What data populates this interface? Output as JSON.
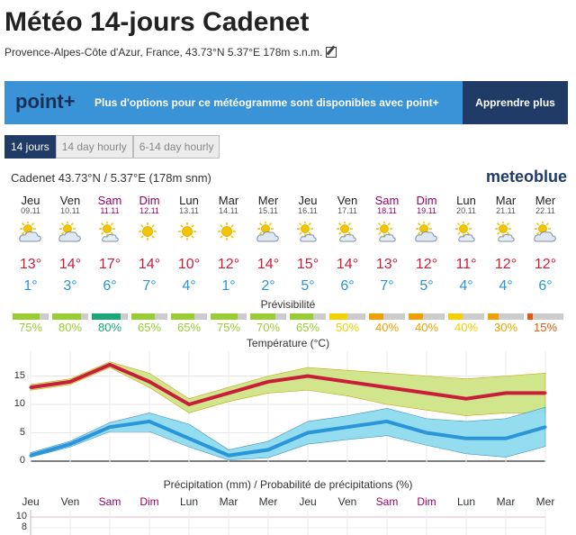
{
  "page": {
    "title": "Météo 14-jours Cadenet",
    "subtitle": "Provence-Alpes-Côte d'Azur, France, 43.73°N 5.37°E 178m s.n.m."
  },
  "banner": {
    "logo": "point+",
    "message": "Plus d'options pour ce météogramme sont disponibles avec point+",
    "cta": "Apprendre plus"
  },
  "tabs": [
    "14 jours",
    "14 day hourly",
    "6-14 day hourly"
  ],
  "location": "Cadenet  43.73°N / 5.37°E (178m snm)",
  "brand": "meteoblue",
  "predictability_label": "Prévisibilité",
  "days": [
    {
      "day": "Jeu",
      "date": "09.11",
      "weekend": false,
      "icon": "partly-cloudy-icon",
      "tmax": "13°",
      "tmin": "1°",
      "pred": "75%",
      "pred_value": 75,
      "pred_color": "#9acd32"
    },
    {
      "day": "Ven",
      "date": "10.11",
      "weekend": false,
      "icon": "partly-cloudy-icon",
      "tmax": "14°",
      "tmin": "3°",
      "pred": "80%",
      "pred_value": 80,
      "pred_color": "#9acd32"
    },
    {
      "day": "Sam",
      "date": "11.11",
      "weekend": true,
      "icon": "sun-cloud-icon",
      "tmax": "17°",
      "tmin": "6°",
      "pred": "80%",
      "pred_value": 80,
      "pred_color": "#1aa87a"
    },
    {
      "day": "Dim",
      "date": "12.11",
      "weekend": true,
      "icon": "sunny-icon",
      "tmax": "14°",
      "tmin": "7°",
      "pred": "65%",
      "pred_value": 65,
      "pred_color": "#9acd32"
    },
    {
      "day": "Lun",
      "date": "13.11",
      "weekend": false,
      "icon": "sunny-icon",
      "tmax": "10°",
      "tmin": "4°",
      "pred": "65%",
      "pred_value": 65,
      "pred_color": "#9acd32"
    },
    {
      "day": "Mar",
      "date": "14.11",
      "weekend": false,
      "icon": "sunny-icon",
      "tmax": "12°",
      "tmin": "1°",
      "pred": "75%",
      "pred_value": 75,
      "pred_color": "#9acd32"
    },
    {
      "day": "Mer",
      "date": "15.11",
      "weekend": false,
      "icon": "partly-cloudy-icon",
      "tmax": "14°",
      "tmin": "2°",
      "pred": "70%",
      "pred_value": 70,
      "pred_color": "#9acd32"
    },
    {
      "day": "Jeu",
      "date": "16.11",
      "weekend": false,
      "icon": "sun-cloud-icon",
      "tmax": "15°",
      "tmin": "5°",
      "pred": "65%",
      "pred_value": 65,
      "pred_color": "#9acd32"
    },
    {
      "day": "Ven",
      "date": "17.11",
      "weekend": false,
      "icon": "sun-cloud-icon",
      "tmax": "14°",
      "tmin": "6°",
      "pred": "50%",
      "pred_value": 50,
      "pred_color": "#f5d000"
    },
    {
      "day": "Sam",
      "date": "18.11",
      "weekend": true,
      "icon": "sun-cloud-icon",
      "tmax": "13°",
      "tmin": "7°",
      "pred": "40%",
      "pred_value": 40,
      "pred_color": "#f0a000"
    },
    {
      "day": "Dim",
      "date": "19.11",
      "weekend": true,
      "icon": "partly-cloudy-icon",
      "tmax": "12°",
      "tmin": "5°",
      "pred": "40%",
      "pred_value": 40,
      "pred_color": "#f0a000"
    },
    {
      "day": "Lun",
      "date": "20.11",
      "weekend": false,
      "icon": "sun-cloud-icon",
      "tmax": "11°",
      "tmin": "4°",
      "pred": "40%",
      "pred_value": 40,
      "pred_color": "#f5d000"
    },
    {
      "day": "Mar",
      "date": "21.11",
      "weekend": false,
      "icon": "sun-cloud-icon",
      "tmax": "12°",
      "tmin": "4°",
      "pred": "30%",
      "pred_value": 30,
      "pred_color": "#f0a000"
    },
    {
      "day": "Mer",
      "date": "22.11",
      "weekend": false,
      "icon": "partly-cloudy-icon",
      "tmax": "12°",
      "tmin": "6°",
      "pred": "15%",
      "pred_value": 15,
      "pred_color": "#e05a10"
    }
  ],
  "colors": {
    "max_temp": "#c81e3a",
    "min_temp": "#2a95d8",
    "weekend": "#990066",
    "max_band": "#cfe586",
    "min_band": "#8fdcef"
  },
  "chart_data": [
    {
      "type": "line",
      "title": "Température (°C)",
      "categories": [
        "Jeu",
        "Ven",
        "Sam",
        "Dim",
        "Lun",
        "Mar",
        "Mer",
        "Jeu",
        "Ven",
        "Sam",
        "Dim",
        "Lun",
        "Mar",
        "Mer"
      ],
      "ylim": [
        0,
        18
      ],
      "yticks": [
        0,
        5,
        10,
        15
      ],
      "series": [
        {
          "values": [
            13,
            14,
            17,
            14,
            10,
            12,
            14,
            15,
            14,
            13,
            12,
            11,
            12,
            12
          ],
          "band_low": [
            12.5,
            13.5,
            16.5,
            13,
            8.5,
            10.5,
            12,
            12.5,
            11.5,
            10,
            9,
            8,
            8.5,
            8.5
          ],
          "band_high": [
            13.5,
            14.5,
            17.5,
            15.5,
            11,
            13,
            15,
            16.5,
            16,
            15.5,
            15,
            14.5,
            15,
            15.5
          ]
        },
        {
          "values": [
            1,
            3,
            6,
            7,
            4,
            1,
            2,
            5,
            6,
            7,
            5,
            4,
            4,
            6
          ],
          "band_low": [
            0.7,
            2.5,
            5.2,
            5.2,
            2.5,
            0.2,
            0.6,
            3,
            3.8,
            4.5,
            2.8,
            1.3,
            0.7,
            2.6
          ],
          "band_high": [
            1.5,
            3.5,
            6.8,
            8.5,
            6.5,
            2,
            3.5,
            7,
            8,
            9.3,
            7.5,
            7,
            7.5,
            9.5
          ]
        }
      ]
    },
    {
      "type": "bar",
      "title": "Précipitation (mm) / Probabilité de précipitations (%)",
      "categories": [
        "Jeu",
        "Ven",
        "Sam",
        "Dim",
        "Lun",
        "Mar",
        "Mer",
        "Jeu",
        "Ven",
        "Sam",
        "Dim",
        "Lun",
        "Mar",
        "Mer"
      ],
      "yticks": [
        10,
        8
      ]
    }
  ]
}
